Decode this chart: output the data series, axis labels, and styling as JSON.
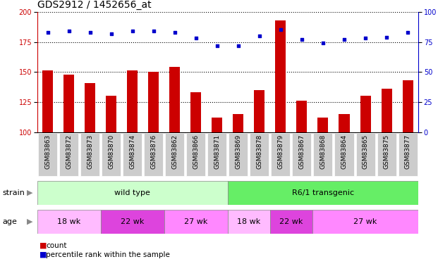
{
  "title": "GDS2912 / 1452656_at",
  "samples": [
    "GSM83863",
    "GSM83872",
    "GSM83873",
    "GSM83870",
    "GSM83874",
    "GSM83876",
    "GSM83862",
    "GSM83866",
    "GSM83871",
    "GSM83869",
    "GSM83878",
    "GSM83879",
    "GSM83867",
    "GSM83868",
    "GSM83864",
    "GSM83865",
    "GSM83875",
    "GSM83877"
  ],
  "counts": [
    151,
    148,
    141,
    130,
    151,
    150,
    154,
    133,
    112,
    115,
    135,
    193,
    126,
    112,
    115,
    130,
    136,
    143
  ],
  "percentiles": [
    83,
    84,
    83,
    82,
    84,
    84,
    83,
    78,
    72,
    72,
    80,
    85,
    77,
    74,
    77,
    78,
    79,
    83
  ],
  "ylim_left": [
    100,
    200
  ],
  "ylim_right": [
    0,
    100
  ],
  "yticks_left": [
    100,
    125,
    150,
    175,
    200
  ],
  "yticks_right": [
    0,
    25,
    50,
    75,
    100
  ],
  "bar_color": "#cc0000",
  "dot_color": "#0000cc",
  "strain_groups": [
    {
      "label": "wild type",
      "start": 0,
      "end": 9,
      "color": "#ccffcc"
    },
    {
      "label": "R6/1 transgenic",
      "start": 9,
      "end": 18,
      "color": "#66ee66"
    }
  ],
  "age_groups": [
    {
      "label": "18 wk",
      "start": 0,
      "end": 3,
      "color": "#ffbbff"
    },
    {
      "label": "22 wk",
      "start": 3,
      "end": 6,
      "color": "#dd44dd"
    },
    {
      "label": "27 wk",
      "start": 6,
      "end": 9,
      "color": "#ff88ff"
    },
    {
      "label": "18 wk",
      "start": 9,
      "end": 11,
      "color": "#ffbbff"
    },
    {
      "label": "22 wk",
      "start": 11,
      "end": 13,
      "color": "#dd44dd"
    },
    {
      "label": "27 wk",
      "start": 13,
      "end": 18,
      "color": "#ff88ff"
    }
  ],
  "bg_color": "#ffffff",
  "plot_bg_color": "#ffffff",
  "tick_bg_color": "#cccccc",
  "title_fontsize": 10,
  "label_fontsize": 6.5,
  "tick_fontsize": 7,
  "legend_fontsize": 7.5,
  "annotation_fontsize": 8,
  "group_label_fontsize": 8
}
